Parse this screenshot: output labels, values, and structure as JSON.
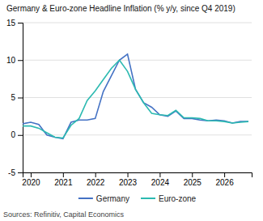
{
  "chart_data": {
    "type": "line",
    "title": "Germany & Euro-zone Headline Inflation (% y/y, since Q4 2019)",
    "source": "Sources: Refinitiv, Capital Economics",
    "x": [
      2019.75,
      2020.0,
      2020.25,
      2020.5,
      2020.75,
      2021.0,
      2021.25,
      2021.5,
      2021.75,
      2022.0,
      2022.25,
      2022.5,
      2022.75,
      2023.0,
      2023.25,
      2023.5,
      2023.75,
      2024.0,
      2024.25,
      2024.5,
      2024.75,
      2025.0,
      2025.25,
      2025.5,
      2025.75,
      2026.0,
      2026.25,
      2026.5,
      2026.75
    ],
    "series": [
      {
        "name": "Germany",
        "color": "#4472C4",
        "values": [
          1.5,
          1.7,
          1.4,
          0.0,
          -0.3,
          -0.5,
          1.7,
          2.0,
          2.0,
          2.2,
          5.8,
          7.9,
          10.0,
          10.8,
          6.1,
          4.3,
          3.7,
          2.7,
          2.5,
          3.2,
          2.2,
          2.2,
          2.0,
          1.9,
          2.0,
          1.9,
          1.6,
          1.8,
          1.8
        ]
      },
      {
        "name": "Euro-zone",
        "color": "#2CBAB1",
        "values": [
          1.2,
          1.2,
          0.9,
          0.3,
          -0.3,
          -0.4,
          1.3,
          2.2,
          4.6,
          5.9,
          7.4,
          8.9,
          10.0,
          8.5,
          6.1,
          4.3,
          2.9,
          2.7,
          2.6,
          3.3,
          2.3,
          2.3,
          2.2,
          1.9,
          1.9,
          1.8,
          1.6,
          1.7,
          1.8
        ]
      }
    ],
    "xlim": [
      2019.75,
      2026.85
    ],
    "xticks": [
      2020,
      2021,
      2022,
      2023,
      2024,
      2025,
      2026
    ],
    "ylim": [
      -5,
      15
    ],
    "yticks": [
      -5,
      0,
      5,
      10,
      15
    ],
    "grid": true,
    "legend": "bottom"
  }
}
